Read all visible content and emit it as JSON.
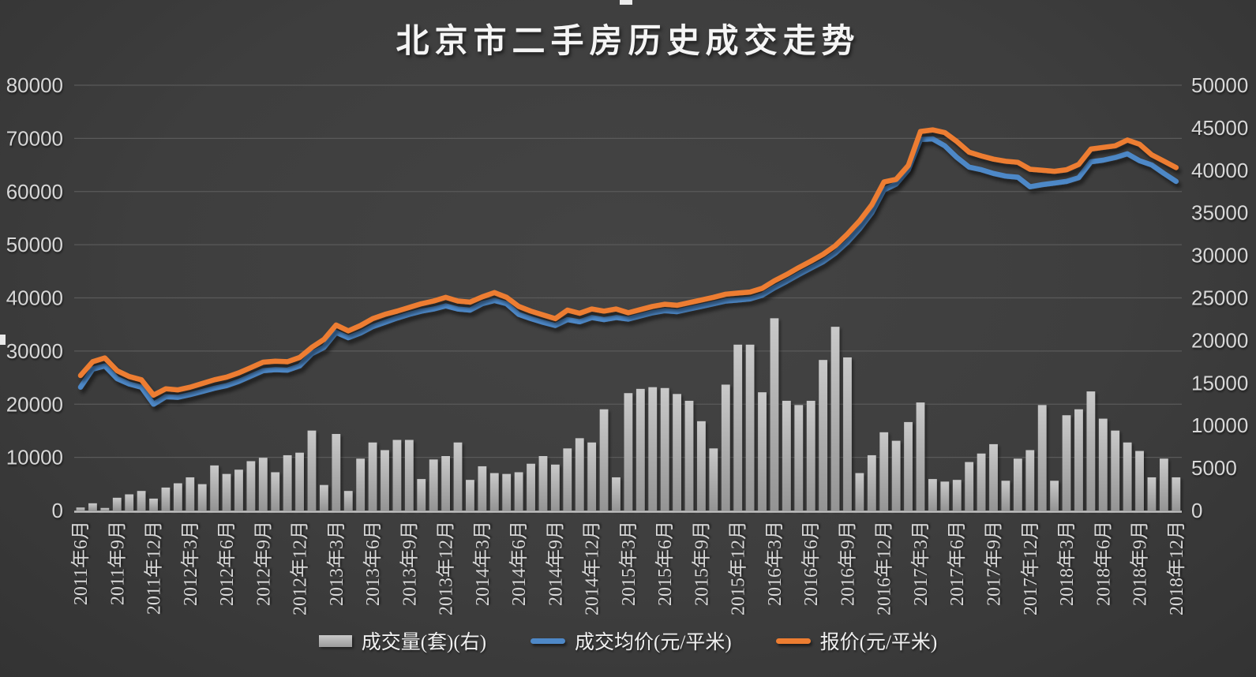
{
  "title": "北京市二手房历史成交走势",
  "legend": {
    "items": [
      {
        "label": "成交量(套)(右)",
        "type": "bar",
        "color": "#b5b5b5"
      },
      {
        "label": "成交均价(元/平米)",
        "type": "line",
        "color": "#4E88C7"
      },
      {
        "label": "报价(元/平米)",
        "type": "line",
        "color": "#ED7D31"
      }
    ]
  },
  "chart_data": {
    "type": "combo",
    "title": "北京市二手房历史成交走势",
    "grid": true,
    "legend_position": "bottom",
    "background": "#3e3e3e",
    "months": [
      "2011-06",
      "2011-07",
      "2011-08",
      "2011-09",
      "2011-10",
      "2011-11",
      "2011-12",
      "2012-01",
      "2012-02",
      "2012-03",
      "2012-04",
      "2012-05",
      "2012-06",
      "2012-07",
      "2012-08",
      "2012-09",
      "2012-10",
      "2012-11",
      "2012-12",
      "2013-01",
      "2013-02",
      "2013-03",
      "2013-04",
      "2013-05",
      "2013-06",
      "2013-07",
      "2013-08",
      "2013-09",
      "2013-10",
      "2013-11",
      "2013-12",
      "2014-01",
      "2014-02",
      "2014-03",
      "2014-04",
      "2014-05",
      "2014-06",
      "2014-07",
      "2014-08",
      "2014-09",
      "2014-10",
      "2014-11",
      "2014-12",
      "2015-01",
      "2015-02",
      "2015-03",
      "2015-04",
      "2015-05",
      "2015-06",
      "2015-07",
      "2015-08",
      "2015-09",
      "2015-10",
      "2015-11",
      "2015-12",
      "2016-01",
      "2016-02",
      "2016-03",
      "2016-04",
      "2016-05",
      "2016-06",
      "2016-07",
      "2016-08",
      "2016-09",
      "2016-10",
      "2016-11",
      "2016-12",
      "2017-01",
      "2017-02",
      "2017-03",
      "2017-04",
      "2017-05",
      "2017-06",
      "2017-07",
      "2017-08",
      "2017-09",
      "2017-10",
      "2017-11",
      "2017-12",
      "2018-01",
      "2018-02",
      "2018-03",
      "2018-04",
      "2018-05",
      "2018-06",
      "2018-07",
      "2018-08",
      "2018-09",
      "2018-10",
      "2018-11",
      "2018-12"
    ],
    "x_tick_labels": [
      "2011年6月",
      "2011年9月",
      "2011年12月",
      "2012年3月",
      "2012年6月",
      "2012年9月",
      "2012年12月",
      "2013年3月",
      "2013年6月",
      "2013年9月",
      "2013年12月",
      "2014年3月",
      "2014年6月",
      "2014年9月",
      "2014年12月",
      "2015年3月",
      "2015年6月",
      "2015年9月",
      "2015年12月",
      "2016年3月",
      "2016年6月",
      "2016年9月",
      "2016年12月",
      "2017年3月",
      "2017年6月",
      "2017年9月",
      "2017年12月",
      "2018年3月",
      "2018年6月",
      "2018年9月",
      "2018年12月"
    ],
    "left_axis": {
      "min": 0,
      "max": 80000,
      "step": 10000,
      "ticks": [
        "80000",
        "70000",
        "60000",
        "50000",
        "40000",
        "30000",
        "20000",
        "10000",
        "0"
      ]
    },
    "right_axis": {
      "min": 0,
      "max": 50000,
      "step": 5000,
      "ticks": [
        "50000",
        "45000",
        "40000",
        "35000",
        "30000",
        "25000",
        "20000",
        "15000",
        "10000",
        "5000",
        "0"
      ]
    },
    "series": [
      {
        "name": "成交量(套)(右)",
        "type": "bar",
        "axis": "right",
        "color_top": "#c9c9c9",
        "color_bottom": "#949494",
        "values": [
          350,
          850,
          300,
          1500,
          1900,
          2300,
          1400,
          2700,
          3200,
          3900,
          3100,
          5300,
          4300,
          4800,
          5800,
          6200,
          4500,
          6500,
          6800,
          9400,
          3000,
          9000,
          2300,
          6100,
          8000,
          7100,
          8300,
          8300,
          3700,
          6000,
          6400,
          8000,
          3600,
          5200,
          4400,
          4300,
          4500,
          5500,
          6400,
          5400,
          7300,
          8500,
          8000,
          11900,
          3900,
          13800,
          14300,
          14500,
          14400,
          13700,
          12900,
          10500,
          7300,
          14800,
          19500,
          19500,
          13900,
          22600,
          12900,
          12400,
          12900,
          17700,
          21600,
          18000,
          4400,
          6500,
          9200,
          8200,
          10400,
          12700,
          3700,
          3400,
          3600,
          5700,
          6700,
          7800,
          3500,
          6100,
          7100,
          12400,
          3500,
          11200,
          11900,
          14000,
          10800,
          9400,
          8000,
          7000,
          3900,
          6100,
          3900
        ]
      },
      {
        "name": "成交均价(元/平米)",
        "type": "line",
        "axis": "left",
        "color": "#4E88C7",
        "values": [
          23200,
          26600,
          27200,
          24800,
          23800,
          23200,
          20000,
          21400,
          21300,
          21800,
          22400,
          23000,
          23500,
          24300,
          25300,
          26300,
          26500,
          26400,
          27200,
          29500,
          30700,
          33500,
          32500,
          33400,
          34600,
          35400,
          36200,
          36900,
          37500,
          37900,
          38500,
          37900,
          37700,
          38900,
          39500,
          38900,
          36900,
          36100,
          35400,
          34800,
          35900,
          35500,
          36300,
          35900,
          36300,
          36000,
          36600,
          37200,
          37600,
          37400,
          37900,
          38400,
          38900,
          39400,
          39600,
          39800,
          40500,
          41900,
          43100,
          44400,
          45600,
          46800,
          48400,
          50500,
          53000,
          56000,
          60300,
          61400,
          64100,
          69800,
          69900,
          68600,
          66400,
          64600,
          64100,
          63400,
          62900,
          62700,
          60900,
          61300,
          61600,
          61900,
          62600,
          65600,
          65900,
          66400,
          67100,
          65800,
          65000,
          63400,
          61900
        ]
      },
      {
        "name": "报价(元/平米)",
        "type": "line",
        "axis": "left",
        "color": "#ED7D31",
        "values": [
          25400,
          28000,
          28700,
          26300,
          25200,
          24600,
          21700,
          22900,
          22700,
          23200,
          23900,
          24600,
          25100,
          25900,
          26900,
          27900,
          28100,
          28000,
          28800,
          30700,
          32200,
          34900,
          33800,
          34800,
          36100,
          36900,
          37500,
          38200,
          38900,
          39400,
          40100,
          39400,
          39200,
          40200,
          41000,
          40100,
          38400,
          37500,
          36800,
          36100,
          37700,
          37100,
          37900,
          37500,
          37900,
          37200,
          37800,
          38400,
          38800,
          38600,
          39100,
          39600,
          40100,
          40700,
          40900,
          41100,
          41800,
          43200,
          44400,
          45700,
          46900,
          48200,
          49800,
          52000,
          54500,
          57500,
          61800,
          62300,
          64900,
          71300,
          71600,
          71100,
          69400,
          67400,
          66700,
          66100,
          65700,
          65500,
          64200,
          64000,
          63800,
          64100,
          65100,
          68000,
          68300,
          68600,
          69700,
          68900,
          66900,
          65700,
          64500
        ]
      }
    ]
  }
}
